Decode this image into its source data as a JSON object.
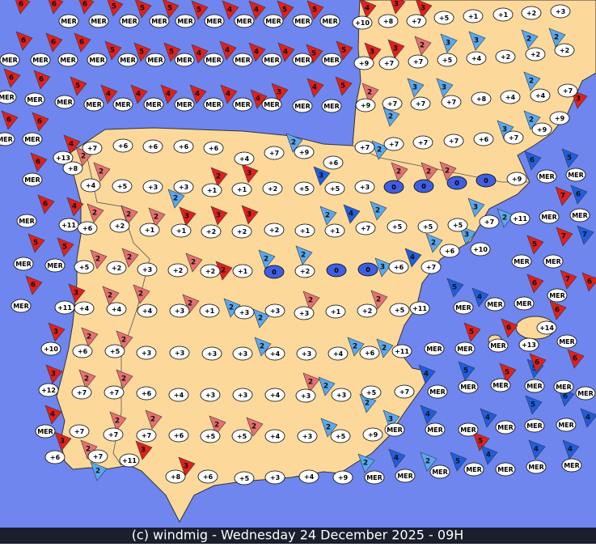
{
  "map": {
    "footer": "(c) windmig - Wednesday 24 December 2025 - 09H",
    "temperatures": [
      {
        "label": "MER"
      },
      {
        "label": "MER"
      },
      {
        "label": "MER"
      },
      {
        "label": "MER"
      },
      {
        "label": "MER"
      },
      {
        "label": "MER"
      },
      {
        "label": "MER"
      },
      {
        "label": "MER"
      },
      {
        "label": "MER"
      },
      {
        "label": "MER"
      },
      {
        "label": "+10"
      },
      {
        "label": "+8"
      },
      {
        "label": "+7"
      },
      {
        "label": "+5"
      },
      {
        "label": "+1"
      },
      {
        "label": "+1"
      },
      {
        "label": "+2"
      },
      {
        "label": "+3"
      },
      {
        "label": "MER"
      },
      {
        "label": "MER"
      },
      {
        "label": "MER"
      },
      {
        "label": "MER"
      },
      {
        "label": "MER"
      },
      {
        "label": "MER"
      },
      {
        "label": "MER"
      },
      {
        "label": "MER"
      },
      {
        "label": "MER"
      },
      {
        "label": "MER"
      },
      {
        "label": "MER"
      },
      {
        "label": "MER"
      },
      {
        "label": "+9"
      },
      {
        "label": "+7"
      },
      {
        "label": "+7"
      },
      {
        "label": "+5"
      },
      {
        "label": "+4"
      },
      {
        "label": "+2"
      },
      {
        "label": "+2"
      },
      {
        "label": "+2"
      },
      {
        "label": "MER"
      },
      {
        "label": "MER"
      },
      {
        "label": "MER"
      },
      {
        "label": "MER"
      },
      {
        "label": "MER"
      },
      {
        "label": "MER"
      },
      {
        "label": "MER"
      },
      {
        "label": "MER"
      },
      {
        "label": "MER"
      },
      {
        "label": "MER"
      },
      {
        "label": "MER"
      },
      {
        "label": "MER"
      },
      {
        "label": "+9"
      },
      {
        "label": "+7"
      },
      {
        "label": "+7"
      },
      {
        "label": "+7"
      },
      {
        "label": "+8"
      },
      {
        "label": "+4"
      },
      {
        "label": "+4"
      },
      {
        "label": "+7"
      },
      {
        "label": "+9"
      },
      {
        "label": "+9"
      },
      {
        "label": "MER"
      },
      {
        "label": "MER"
      },
      {
        "label": "+13"
      },
      {
        "label": "+8"
      },
      {
        "label": "+7"
      },
      {
        "label": "+6"
      },
      {
        "label": "+6"
      },
      {
        "label": "+6"
      },
      {
        "label": "+6"
      },
      {
        "label": "+4"
      },
      {
        "label": "+7"
      },
      {
        "label": "+9"
      },
      {
        "label": "+6"
      },
      {
        "label": "+7"
      },
      {
        "label": "+7"
      },
      {
        "label": "+7"
      },
      {
        "label": "+7"
      },
      {
        "label": "+6"
      },
      {
        "label": "+7"
      },
      {
        "label": "MER"
      },
      {
        "label": "+4"
      },
      {
        "label": "+5"
      },
      {
        "label": "+3"
      },
      {
        "label": "+3"
      },
      {
        "label": "+1"
      },
      {
        "label": "+1"
      },
      {
        "label": "+2"
      },
      {
        "label": "+5"
      },
      {
        "label": "+5"
      },
      {
        "label": "+3"
      },
      {
        "label": "0",
        "fill": "#3f5fe0"
      },
      {
        "label": "0",
        "fill": "#3f5fe0"
      },
      {
        "label": "0",
        "fill": "#3f5fe0"
      },
      {
        "label": "0",
        "fill": "#3f5fe0"
      },
      {
        "label": "+9"
      },
      {
        "label": "MER"
      },
      {
        "label": "MER"
      },
      {
        "label": "MER"
      },
      {
        "label": "+11"
      },
      {
        "label": "+6"
      },
      {
        "label": "+2"
      },
      {
        "label": "+1"
      },
      {
        "label": "+1"
      },
      {
        "label": "+2"
      },
      {
        "label": "+2"
      },
      {
        "label": "+2"
      },
      {
        "label": "+1"
      },
      {
        "label": "+1"
      },
      {
        "label": "+7"
      },
      {
        "label": "+5"
      },
      {
        "label": "+5"
      },
      {
        "label": "+5"
      },
      {
        "label": "+7"
      },
      {
        "label": "+11"
      },
      {
        "label": "MER"
      },
      {
        "label": "MER"
      },
      {
        "label": "MER"
      },
      {
        "label": "MER"
      },
      {
        "label": "+5"
      },
      {
        "label": "+2"
      },
      {
        "label": "+3"
      },
      {
        "label": "+2"
      },
      {
        "label": "+2"
      },
      {
        "label": "+1"
      },
      {
        "label": "0",
        "fill": "#3f5fe0"
      },
      {
        "label": "+2"
      },
      {
        "label": "0",
        "fill": "#3f5fe0"
      },
      {
        "label": "0",
        "fill": "#3f5fe0"
      },
      {
        "label": "+6"
      },
      {
        "label": "+7"
      },
      {
        "label": "+6"
      },
      {
        "label": "+10"
      },
      {
        "label": "MER"
      },
      {
        "label": "MER"
      },
      {
        "label": "MER"
      },
      {
        "label": "+11"
      },
      {
        "label": "+4"
      },
      {
        "label": "+4"
      },
      {
        "label": "+4"
      },
      {
        "label": "+3"
      },
      {
        "label": "+1"
      },
      {
        "label": "+3"
      },
      {
        "label": "+3"
      },
      {
        "label": "+3"
      },
      {
        "label": "+1"
      },
      {
        "label": "+2"
      },
      {
        "label": "+5"
      },
      {
        "label": "+11"
      },
      {
        "label": "MER"
      },
      {
        "label": "MER"
      },
      {
        "label": "MER"
      },
      {
        "label": "+14"
      },
      {
        "label": "+13"
      },
      {
        "label": "MER"
      },
      {
        "label": "+10"
      },
      {
        "label": "+6"
      },
      {
        "label": "+5"
      },
      {
        "label": "+3"
      },
      {
        "label": "+3"
      },
      {
        "label": "+3"
      },
      {
        "label": "+3"
      },
      {
        "label": "+4"
      },
      {
        "label": "+3"
      },
      {
        "label": "+4"
      },
      {
        "label": "+6"
      },
      {
        "label": "+11"
      },
      {
        "label": "MER"
      },
      {
        "label": "MER"
      },
      {
        "label": "MER"
      },
      {
        "label": "MER"
      },
      {
        "label": "+12"
      },
      {
        "label": "+7"
      },
      {
        "label": "+7"
      },
      {
        "label": "+6"
      },
      {
        "label": "+4"
      },
      {
        "label": "+3"
      },
      {
        "label": "+3"
      },
      {
        "label": "+4"
      },
      {
        "label": "+3"
      },
      {
        "label": "+3"
      },
      {
        "label": "+5"
      },
      {
        "label": "+7"
      },
      {
        "label": "MER"
      },
      {
        "label": "MER"
      },
      {
        "label": "MER"
      },
      {
        "label": "MER"
      },
      {
        "label": "MER"
      },
      {
        "label": "MER"
      },
      {
        "label": "MER"
      },
      {
        "label": "+7"
      },
      {
        "label": "+7"
      },
      {
        "label": "+7"
      },
      {
        "label": "+6"
      },
      {
        "label": "+5"
      },
      {
        "label": "+5"
      },
      {
        "label": "+4"
      },
      {
        "label": "+3"
      },
      {
        "label": "+5"
      },
      {
        "label": "+9"
      },
      {
        "label": "MER"
      },
      {
        "label": "MER"
      },
      {
        "label": "MER"
      },
      {
        "label": "MER"
      },
      {
        "label": "MER"
      },
      {
        "label": "MER"
      },
      {
        "label": "+6"
      },
      {
        "label": "+7"
      },
      {
        "label": "+11"
      },
      {
        "label": "+8"
      },
      {
        "label": "+6"
      },
      {
        "label": "+5"
      },
      {
        "label": "+3"
      },
      {
        "label": "+4"
      },
      {
        "label": "+9"
      },
      {
        "label": "MER"
      },
      {
        "label": "MER"
      },
      {
        "label": "MER"
      },
      {
        "label": "MER"
      },
      {
        "label": "MER"
      },
      {
        "label": "MER"
      },
      {
        "label": "MER"
      }
    ],
    "winds": [
      {
        "label": "6",
        "color": "#e0201c"
      },
      {
        "label": "6",
        "color": "#e0201c"
      },
      {
        "label": "6",
        "color": "#e0201c"
      },
      {
        "label": "5",
        "color": "#e0201c"
      },
      {
        "label": "5",
        "color": "#e0201c"
      },
      {
        "label": "5",
        "color": "#e0201c"
      },
      {
        "label": "5",
        "color": "#e0201c"
      },
      {
        "label": "4",
        "color": "#e0201c"
      },
      {
        "label": "4",
        "color": "#e0201c"
      },
      {
        "label": "5",
        "color": "#e0201c"
      },
      {
        "label": "5",
        "color": "#e0201c"
      },
      {
        "label": "4",
        "color": "#e0201c"
      },
      {
        "label": "3",
        "color": "#e0201c"
      },
      {
        "label": "3",
        "color": "#e0201c"
      },
      {
        "label": "6",
        "color": "#e0201c"
      },
      {
        "label": "6",
        "color": "#e0201c"
      },
      {
        "label": "6",
        "color": "#e0201c"
      },
      {
        "label": "5",
        "color": "#e0201c"
      },
      {
        "label": "5",
        "color": "#e0201c"
      },
      {
        "label": "5",
        "color": "#e0201c"
      },
      {
        "label": "4",
        "color": "#e0201c"
      },
      {
        "label": "4",
        "color": "#e0201c"
      },
      {
        "label": "4",
        "color": "#e0201c"
      },
      {
        "label": "4",
        "color": "#e0201c"
      },
      {
        "label": "5",
        "color": "#e0201c"
      },
      {
        "label": "5",
        "color": "#e0201c"
      },
      {
        "label": "3",
        "color": "#e0201c"
      },
      {
        "label": "3",
        "color": "#e0201c"
      },
      {
        "label": "2",
        "color": "#e87070"
      },
      {
        "label": "3",
        "color": "#5aa8f0"
      },
      {
        "label": "3",
        "color": "#5aa8f0"
      },
      {
        "label": "2",
        "color": "#5aa8f0"
      },
      {
        "label": "2",
        "color": "#5aa8f0"
      },
      {
        "label": "6",
        "color": "#e0201c"
      },
      {
        "label": "6",
        "color": "#e0201c"
      },
      {
        "label": "5",
        "color": "#e0201c"
      },
      {
        "label": "4",
        "color": "#e0201c"
      },
      {
        "label": "4",
        "color": "#e0201c"
      },
      {
        "label": "4",
        "color": "#e0201c"
      },
      {
        "label": "4",
        "color": "#e0201c"
      },
      {
        "label": "4",
        "color": "#e0201c"
      },
      {
        "label": "4",
        "color": "#e0201c"
      },
      {
        "label": "3",
        "color": "#e0201c"
      },
      {
        "label": "4",
        "color": "#e0201c"
      },
      {
        "label": "5",
        "color": "#e0201c"
      },
      {
        "label": "2",
        "color": "#e87070"
      },
      {
        "label": "3",
        "color": "#5aa8f0"
      },
      {
        "label": "3",
        "color": "#5aa8f0"
      },
      {
        "label": "2",
        "color": "#5aa8f0"
      },
      {
        "label": "3",
        "color": "#e0201c"
      },
      {
        "label": "6",
        "color": "#e0201c"
      },
      {
        "label": "6",
        "color": "#e0201c"
      },
      {
        "label": "2",
        "color": "#5aa8f0"
      },
      {
        "label": "3",
        "color": "#5aa8f0"
      },
      {
        "label": "2",
        "color": "#5aa8f0"
      },
      {
        "label": "5",
        "color": "#1e5ee0"
      },
      {
        "label": "6",
        "color": "#e0201c"
      },
      {
        "label": "4",
        "color": "#e0201c"
      },
      {
        "label": "2",
        "color": "#e87070"
      },
      {
        "label": "2",
        "color": "#e87070"
      },
      {
        "label": "2",
        "color": "#e0201c"
      },
      {
        "label": "3",
        "color": "#e0201c"
      },
      {
        "label": "2",
        "color": "#5aa8f0"
      },
      {
        "label": "3",
        "color": "#1e5ee0"
      },
      {
        "label": "2",
        "color": "#5aa8f0"
      },
      {
        "label": "2",
        "color": "#e87070"
      },
      {
        "label": "2",
        "color": "#e87070"
      },
      {
        "label": "2",
        "color": "#e87070"
      },
      {
        "label": "6",
        "color": "#1e5ee0"
      },
      {
        "label": "6",
        "color": "#1e5ee0"
      },
      {
        "label": "7",
        "color": "#e0201c"
      },
      {
        "label": "6",
        "color": "#e0201c"
      },
      {
        "label": "4",
        "color": "#e0201c"
      },
      {
        "label": "2",
        "color": "#e87070"
      },
      {
        "label": "2",
        "color": "#e87070"
      },
      {
        "label": "2",
        "color": "#e87070"
      },
      {
        "label": "3",
        "color": "#e0201c"
      },
      {
        "label": "3",
        "color": "#e0201c"
      },
      {
        "label": "3",
        "color": "#e0201c"
      },
      {
        "label": "2",
        "color": "#5aa8f0"
      },
      {
        "label": "2",
        "color": "#5aa8f0"
      },
      {
        "label": "4",
        "color": "#1e5ee0"
      },
      {
        "label": "2",
        "color": "#5aa8f0"
      },
      {
        "label": "3",
        "color": "#5aa8f0"
      },
      {
        "label": "2",
        "color": "#5aa8f0"
      },
      {
        "label": "7",
        "color": "#1e5ee0"
      },
      {
        "label": "7",
        "color": "#e0201c"
      },
      {
        "label": "5",
        "color": "#e0201c"
      },
      {
        "label": "5",
        "color": "#e0201c"
      },
      {
        "label": "5",
        "color": "#e0201c"
      },
      {
        "label": "2",
        "color": "#e87070"
      },
      {
        "label": "2",
        "color": "#e87070"
      },
      {
        "label": "2",
        "color": "#e87070"
      },
      {
        "label": "2",
        "color": "#e0201c"
      },
      {
        "label": "2",
        "color": "#5aa8f0"
      },
      {
        "label": "2",
        "color": "#5aa8f0"
      },
      {
        "label": "3",
        "color": "#5aa8f0"
      },
      {
        "label": "4",
        "color": "#1e5ee0"
      },
      {
        "label": "2",
        "color": "#5aa8f0"
      },
      {
        "label": "3",
        "color": "#5aa8f0"
      },
      {
        "label": "7",
        "color": "#e0201c"
      },
      {
        "label": "6",
        "color": "#e0201c"
      },
      {
        "label": "6",
        "color": "#e0201c"
      },
      {
        "label": "6",
        "color": "#e0201c"
      },
      {
        "label": "3",
        "color": "#e0201c"
      },
      {
        "label": "2",
        "color": "#e87070"
      },
      {
        "label": "2",
        "color": "#e87070"
      },
      {
        "label": "2",
        "color": "#e87070"
      },
      {
        "label": "2",
        "color": "#5aa8f0"
      },
      {
        "label": "2",
        "color": "#5aa8f0"
      },
      {
        "label": "2",
        "color": "#e87070"
      },
      {
        "label": "2",
        "color": "#e87070"
      },
      {
        "label": "5",
        "color": "#1e5ee0"
      },
      {
        "label": "4",
        "color": "#1e5ee0"
      },
      {
        "label": "6",
        "color": "#e0201c"
      },
      {
        "label": "3",
        "color": "#e0201c"
      },
      {
        "label": "2",
        "color": "#e87070"
      },
      {
        "label": "2",
        "color": "#e87070"
      },
      {
        "label": "2",
        "color": "#5aa8f0"
      },
      {
        "label": "2",
        "color": "#5aa8f0"
      },
      {
        "label": "2",
        "color": "#5aa8f0"
      },
      {
        "label": "5",
        "color": "#e0201c"
      },
      {
        "label": "6",
        "color": "#e0201c"
      },
      {
        "label": "5",
        "color": "#1e5ee0"
      },
      {
        "label": "6",
        "color": "#e0201c"
      },
      {
        "label": "3",
        "color": "#e0201c"
      },
      {
        "label": "2",
        "color": "#e87070"
      },
      {
        "label": "2",
        "color": "#e87070"
      },
      {
        "label": "2",
        "color": "#e87070"
      },
      {
        "label": "2",
        "color": "#5aa8f0"
      },
      {
        "label": "2",
        "color": "#5aa8f0"
      },
      {
        "label": "4",
        "color": "#1e5ee0"
      },
      {
        "label": "5",
        "color": "#1e5ee0"
      },
      {
        "label": "5",
        "color": "#e0201c"
      },
      {
        "label": "6",
        "color": "#e0201c"
      },
      {
        "label": "6",
        "color": "#1e5ee0"
      },
      {
        "label": "4",
        "color": "#e0201c"
      },
      {
        "label": "3",
        "color": "#e0201c"
      },
      {
        "label": "2",
        "color": "#e87070"
      },
      {
        "label": "2",
        "color": "#e87070"
      },
      {
        "label": "2",
        "color": "#e87070"
      },
      {
        "label": "2",
        "color": "#e87070"
      },
      {
        "label": "2",
        "color": "#e87070"
      },
      {
        "label": "2",
        "color": "#5aa8f0"
      },
      {
        "label": "3",
        "color": "#5aa8f0"
      },
      {
        "label": "4",
        "color": "#1e5ee0"
      },
      {
        "label": "4",
        "color": "#1e5ee0"
      },
      {
        "label": "5",
        "color": "#1e5ee0"
      },
      {
        "label": "4",
        "color": "#1e5ee0"
      },
      {
        "label": "5",
        "color": "#e0201c"
      },
      {
        "label": "2",
        "color": "#5aa8f0"
      },
      {
        "label": "3",
        "color": "#e0201c"
      },
      {
        "label": "3",
        "color": "#e0201c"
      },
      {
        "label": "2",
        "color": "#5aa8f0"
      },
      {
        "label": "4",
        "color": "#1e5ee0"
      },
      {
        "label": "2",
        "color": "#5aa8f0"
      },
      {
        "label": "5",
        "color": "#1e5ee0"
      },
      {
        "label": "4",
        "color": "#1e5ee0"
      },
      {
        "label": "4",
        "color": "#1e5ee0"
      },
      {
        "label": "4",
        "color": "#1e5ee0"
      }
    ]
  }
}
